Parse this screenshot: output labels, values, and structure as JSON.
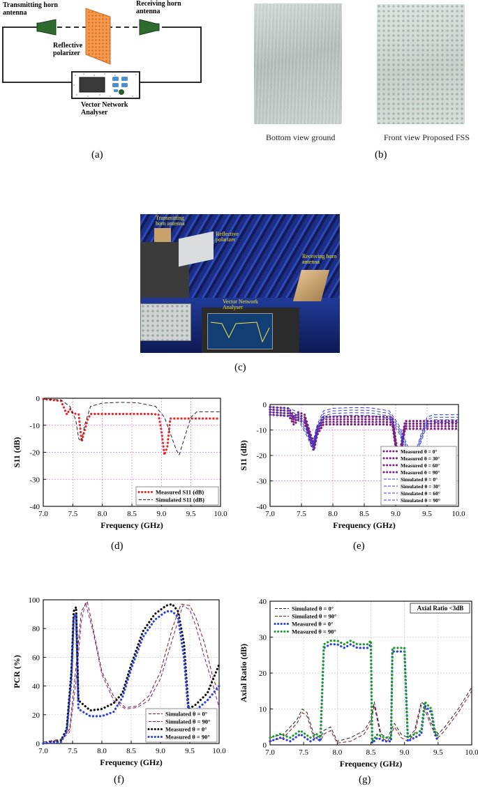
{
  "panel_labels": [
    "(a)",
    "(b)",
    "(c)",
    "(d)",
    "(e)",
    "(f)",
    "(g)"
  ],
  "setup": {
    "tx_label": "Transmitting horn antenna",
    "rx_label": "Receiving horn antenna",
    "polarizer_label": "Reflective polarizer",
    "vna_label": "Vector Network Analyser"
  },
  "photos_b": {
    "left_caption": "Bottom view ground",
    "right_caption": "Front view Proposed FSS"
  },
  "photo_c": {
    "tx_label": "Transmitting horn antenna",
    "polarizer_label": "Reflective polarizer",
    "rx_label": "Receiving horn antenna",
    "vna_label": "Vector Network Analyser"
  },
  "colors": {
    "measured_red": "#e8262b",
    "simulated_black": "#222222",
    "purple": "#7b1f7e",
    "blue": "#2b3ee0",
    "dark_red": "#7a1616",
    "green": "#1a9a2a",
    "grid_pink": "#d77ad7",
    "grid_grey": "#c8c8c8"
  },
  "chart_data": [
    {
      "id": "d",
      "type": "line",
      "xlabel": "Frequency (GHz)",
      "ylabel": "S11 (dB)",
      "xlim": [
        7.0,
        10.0
      ],
      "ylim": [
        -40,
        0
      ],
      "xticks": [
        "7.0",
        "7.5",
        "8.0",
        "8.5",
        "9.0",
        "9.5",
        "10.0"
      ],
      "yticks": [
        "0",
        "-10",
        "-20",
        "-30",
        "-40"
      ],
      "grid": true,
      "legend": "bottom-right",
      "series": [
        {
          "name": "Measured S11 (dB)",
          "style": "dotted",
          "color": "#e8262b",
          "x": [
            7.0,
            7.3,
            7.4,
            7.45,
            7.5,
            7.6,
            7.65,
            7.7,
            7.75,
            7.8,
            8.2,
            8.5,
            8.8,
            8.95,
            9.0,
            9.05,
            9.1,
            9.15,
            9.5,
            10.0
          ],
          "y": [
            -0.3,
            -1,
            -6,
            -4,
            -5.5,
            -6,
            -16,
            -12,
            -8,
            -5.8,
            -5.8,
            -5.8,
            -5.8,
            -6,
            -12,
            -21,
            -18,
            -7.5,
            -7.5,
            -7.5
          ]
        },
        {
          "name": "Simulated S11 (dB)",
          "style": "dashed",
          "color": "#222222",
          "x": [
            7.0,
            7.3,
            7.45,
            7.55,
            7.6,
            7.65,
            7.7,
            7.8,
            8.0,
            8.3,
            8.6,
            8.9,
            9.05,
            9.15,
            9.25,
            9.3,
            9.4,
            9.5,
            9.6,
            10.0
          ],
          "y": [
            -0.3,
            -0.6,
            -3,
            -8,
            -15,
            -16,
            -10,
            -3,
            -1.8,
            -1.5,
            -1.7,
            -3,
            -7,
            -13,
            -19,
            -21,
            -14,
            -7,
            -5,
            -5
          ]
        }
      ]
    },
    {
      "id": "e",
      "type": "line",
      "xlabel": "Frequency (GHz)",
      "ylabel": "S11 (dB)",
      "xlim": [
        7.0,
        10.0
      ],
      "ylim": [
        -40,
        0
      ],
      "xticks": [
        "7.0",
        "7.5",
        "8.0",
        "8.5",
        "9.0",
        "9.5",
        "10.0"
      ],
      "yticks": [
        "0",
        "-10",
        "-20",
        "-30",
        "-40"
      ],
      "grid": true,
      "legend": "bottom-right",
      "series": [
        {
          "name": "Measured θ = 0°",
          "style": "dotted",
          "color": "#7b1f7e",
          "offset": 0
        },
        {
          "name": "Measured θ = 30°",
          "style": "dotted",
          "color": "#7b1f7e",
          "offset": -1
        },
        {
          "name": "Measured θ = 60°",
          "style": "dotted",
          "color": "#7b1f7e",
          "offset": -2
        },
        {
          "name": "Measured θ = 90°",
          "style": "dotted",
          "color": "#7b1f7e",
          "offset": -3
        },
        {
          "name": "Simulated θ = 0°",
          "style": "dashed",
          "color": "#2b3ee0",
          "offset": 0
        },
        {
          "name": "Simulated θ = 30°",
          "style": "dashed",
          "color": "#2b3ee0",
          "offset": -1
        },
        {
          "name": "Simulated θ = 60°",
          "style": "dashed",
          "color": "#2b3ee0",
          "offset": -2
        },
        {
          "name": "Simulated θ = 90°",
          "style": "dashed",
          "color": "#2b3ee0",
          "offset": -3
        }
      ],
      "measured_base": {
        "x": [
          7.0,
          7.3,
          7.38,
          7.45,
          7.55,
          7.65,
          7.7,
          7.75,
          7.85,
          8.2,
          8.5,
          8.8,
          8.95,
          9.0,
          9.05,
          9.1,
          9.15,
          9.5,
          10.0
        ],
        "y": [
          -1,
          -1.5,
          -5,
          -3,
          -4,
          -12,
          -15,
          -9,
          -4.8,
          -4.8,
          -4.8,
          -4.8,
          -5,
          -14,
          -21,
          -14,
          -6.5,
          -6.5,
          -6.5
        ]
      },
      "simulated_base": {
        "x": [
          7.0,
          7.3,
          7.45,
          7.6,
          7.68,
          7.75,
          7.85,
          8.0,
          8.3,
          8.6,
          8.9,
          9.05,
          9.2,
          9.3,
          9.4,
          9.5,
          9.6,
          10.0
        ],
        "y": [
          -1,
          -1.5,
          -3,
          -10,
          -15,
          -8,
          -2.5,
          -1.5,
          -1.2,
          -1.3,
          -2.5,
          -8,
          -17,
          -20,
          -12,
          -5,
          -4,
          -4
        ]
      }
    },
    {
      "id": "f",
      "type": "line",
      "xlabel": "Frequency (GHz)",
      "ylabel": "PCR (%)",
      "xlim": [
        7.0,
        10.0
      ],
      "ylim": [
        0,
        100
      ],
      "xticks": [
        "7.0",
        "7.5",
        "8.0",
        "8.5",
        "9.0",
        "9.5",
        "10.0"
      ],
      "yticks": [
        "0",
        "20",
        "40",
        "60",
        "80",
        "100"
      ],
      "grid": true,
      "legend": "bottom-right",
      "series": [
        {
          "name": "Simulated θ = 0°",
          "style": "dashed",
          "color": "#7a1616",
          "x": [
            7.0,
            7.3,
            7.45,
            7.55,
            7.65,
            7.75,
            7.85,
            8.0,
            8.2,
            8.4,
            8.6,
            8.8,
            9.0,
            9.2,
            9.35,
            9.5,
            9.6,
            9.75,
            9.9,
            10.0
          ],
          "y": [
            1,
            3,
            10,
            50,
            92,
            99,
            80,
            50,
            33,
            25,
            26,
            33,
            50,
            80,
            97,
            96,
            88,
            70,
            45,
            35
          ]
        },
        {
          "name": "Simulated θ = 90°",
          "style": "dashed",
          "color": "#7b1f7e",
          "x": [
            7.0,
            7.3,
            7.45,
            7.55,
            7.65,
            7.72,
            7.85,
            8.0,
            8.2,
            8.4,
            8.6,
            8.8,
            9.0,
            9.2,
            9.38,
            9.5,
            9.6,
            9.75,
            9.9,
            10.0
          ],
          "y": [
            1,
            2,
            8,
            40,
            85,
            98,
            78,
            48,
            30,
            24,
            25,
            30,
            45,
            72,
            96,
            93,
            82,
            60,
            40,
            25
          ]
        },
        {
          "name": "Measured θ = 0°",
          "style": "dotted",
          "color": "#111111",
          "x": [
            7.0,
            7.3,
            7.4,
            7.48,
            7.52,
            7.56,
            7.6,
            7.8,
            8.0,
            8.2,
            8.35,
            8.5,
            8.7,
            8.9,
            9.1,
            9.2,
            9.3,
            9.4,
            9.48,
            9.6,
            9.8,
            10.0
          ],
          "y": [
            0,
            2,
            10,
            50,
            92,
            95,
            30,
            23,
            24,
            28,
            35,
            55,
            78,
            90,
            96,
            97,
            92,
            70,
            24,
            27,
            35,
            55
          ]
        },
        {
          "name": "Measured θ = 90°",
          "style": "dotted",
          "color": "#2b3ee0",
          "x": [
            7.0,
            7.3,
            7.4,
            7.48,
            7.52,
            7.56,
            7.6,
            7.8,
            8.0,
            8.2,
            8.35,
            8.5,
            8.7,
            8.9,
            9.1,
            9.2,
            9.3,
            9.4,
            9.48,
            9.6,
            9.8,
            10.0
          ],
          "y": [
            0,
            1,
            8,
            45,
            88,
            90,
            24,
            19,
            19,
            22,
            32,
            52,
            74,
            86,
            92,
            92,
            88,
            60,
            20,
            23,
            30,
            40
          ]
        }
      ]
    },
    {
      "id": "g",
      "type": "line",
      "xlabel": "Frequency (GHz)",
      "ylabel": "Axial Ratio (dB)",
      "xlim": [
        7.0,
        10.0
      ],
      "ylim": [
        0,
        40
      ],
      "xticks": [
        "7.0",
        "7.5",
        "8.0",
        "8.5",
        "9.0",
        "9.5",
        "10.0"
      ],
      "yticks": [
        "0",
        "10",
        "20",
        "30",
        "40"
      ],
      "grid": true,
      "legend": "top-left",
      "annotation": "Axial Ratio <3dB",
      "series": [
        {
          "name": "Simulated θ = 0°",
          "style": "dashed",
          "color": "#222222",
          "x": [
            7.0,
            7.2,
            7.4,
            7.48,
            7.55,
            7.65,
            7.75,
            7.8,
            7.9,
            8.0,
            8.2,
            8.4,
            8.5,
            8.55,
            8.65,
            8.75,
            8.85,
            8.95,
            9.05,
            9.15,
            9.25,
            9.3,
            9.4,
            9.5,
            9.6,
            9.8,
            10.0
          ],
          "y": [
            2,
            3,
            7,
            10,
            9,
            3,
            2,
            4,
            5,
            1,
            2,
            4,
            7,
            12,
            3,
            2,
            6,
            3,
            2,
            4,
            12,
            11,
            6,
            3,
            5,
            10,
            16
          ]
        },
        {
          "name": "Simulated θ = 90°",
          "style": "dashed",
          "color": "#7a1616",
          "x": [
            7.0,
            7.2,
            7.4,
            7.48,
            7.55,
            7.65,
            7.75,
            7.8,
            7.9,
            8.0,
            8.2,
            8.4,
            8.5,
            8.55,
            8.65,
            8.75,
            8.85,
            8.95,
            9.05,
            9.15,
            9.25,
            9.3,
            9.4,
            9.5,
            9.6,
            9.8,
            10.0
          ],
          "y": [
            1,
            2,
            6,
            9,
            8,
            2,
            1,
            3,
            4,
            0.5,
            1,
            3,
            6,
            11,
            2,
            1,
            5,
            2,
            1,
            3,
            11,
            10,
            5,
            2,
            4,
            9,
            15
          ]
        },
        {
          "name": "Measured θ = 0°",
          "style": "dotted",
          "color": "#2b3ee0",
          "x": [
            7.0,
            7.15,
            7.3,
            7.45,
            7.6,
            7.7,
            7.75,
            7.8,
            7.9,
            8.0,
            8.1,
            8.2,
            8.3,
            8.4,
            8.45,
            8.5,
            8.52,
            8.6,
            8.7,
            8.8,
            8.82,
            8.9,
            8.95,
            9.0,
            9.05,
            9.15,
            9.25,
            9.3,
            9.4,
            9.45,
            9.5
          ],
          "y": [
            1,
            2,
            1,
            3,
            1,
            2,
            1,
            27,
            28,
            28,
            27,
            28,
            27,
            27,
            27,
            28,
            0.5,
            2,
            1,
            1,
            26,
            26,
            26,
            26,
            1,
            2,
            3,
            11,
            9,
            3,
            1
          ]
        },
        {
          "name": "Measured θ = 90°",
          "style": "dotted",
          "color": "#1a9a2a",
          "x": [
            7.0,
            7.15,
            7.3,
            7.45,
            7.6,
            7.7,
            7.75,
            7.8,
            7.9,
            8.0,
            8.1,
            8.2,
            8.3,
            8.4,
            8.45,
            8.5,
            8.52,
            8.6,
            8.7,
            8.8,
            8.82,
            8.9,
            8.95,
            9.0,
            9.05,
            9.15,
            9.25,
            9.3,
            9.4,
            9.45,
            9.5
          ],
          "y": [
            2,
            3,
            2,
            4,
            2,
            3,
            2,
            28,
            29,
            29,
            28,
            29,
            28,
            28,
            28,
            29,
            1,
            3,
            2,
            2,
            27,
            27,
            27,
            27,
            2,
            3,
            4,
            12,
            10,
            4,
            2
          ]
        }
      ]
    }
  ]
}
